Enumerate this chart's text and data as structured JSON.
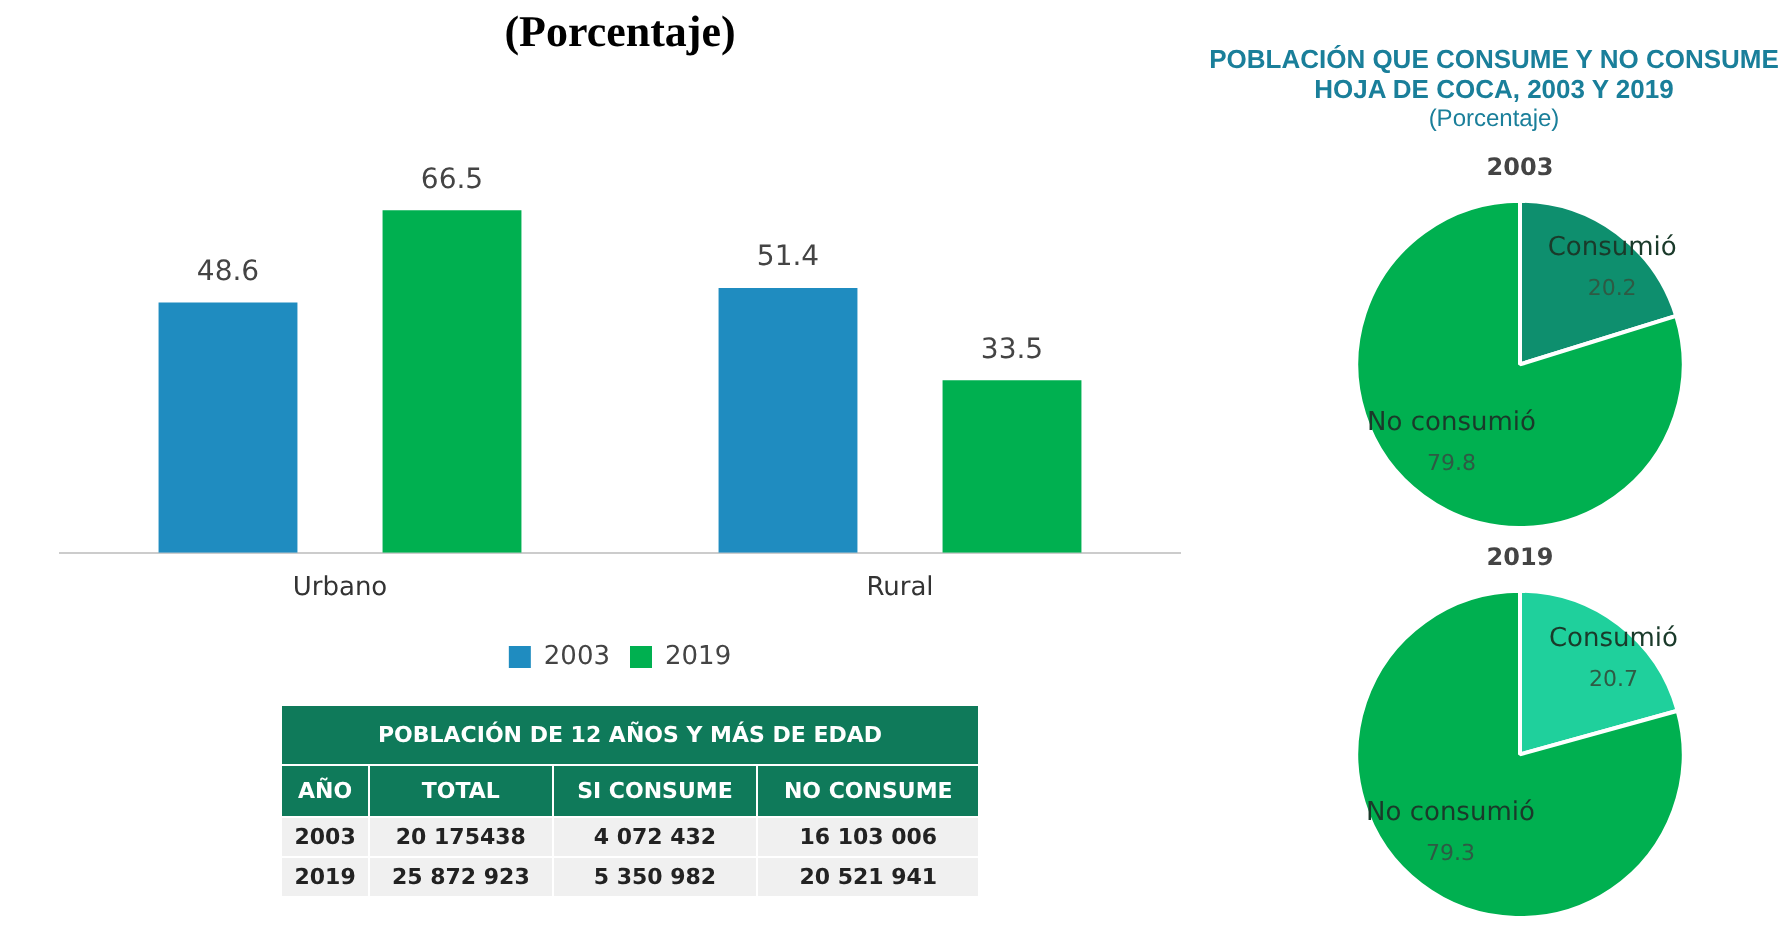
{
  "chart_data": [
    {
      "type": "bar",
      "title": "(Porcentaje)",
      "categories": [
        "Urbano",
        "Rural"
      ],
      "series": [
        {
          "name": "2003",
          "color": "#1f8cc0",
          "values": [
            48.6,
            51.4
          ]
        },
        {
          "name": "2019",
          "color": "#00b050",
          "values": [
            66.5,
            33.5
          ]
        }
      ],
      "data_labels": true,
      "legend": "bottom",
      "tick_labels": "x",
      "grid": false
    },
    {
      "type": "other",
      "title": "POBLACIÓN DE 12 AÑOS Y MÁS DE EDAD",
      "annotations": [
        "AÑO",
        "TOTAL",
        "SI CONSUME",
        "NO CONSUME",
        "2003",
        "20 175438",
        "4 072 432",
        "16 103 006",
        "2019",
        "25 872 923",
        "5 350 982",
        "20 521 941"
      ]
    },
    {
      "type": "other",
      "title": "POBLACIÓN QUE CONSUME Y NO CONSUME HOJA DE COCA, 2003 Y 2019",
      "subtitle": "(Porcentaje)"
    },
    {
      "type": "pie",
      "title": "2003",
      "categories": [
        "Consumió",
        "No consumió"
      ],
      "values": [
        20.2,
        79.8
      ],
      "colors": [
        "#0e8f6e",
        "#00b050"
      ],
      "data_labels": true,
      "legend": false
    },
    {
      "type": "pie",
      "title": "2019",
      "categories": [
        "Consumió",
        "No consumió"
      ],
      "values": [
        20.7,
        79.3
      ],
      "colors": [
        "#1fd09c",
        "#00b050"
      ],
      "data_labels": true,
      "legend": false
    }
  ]
}
